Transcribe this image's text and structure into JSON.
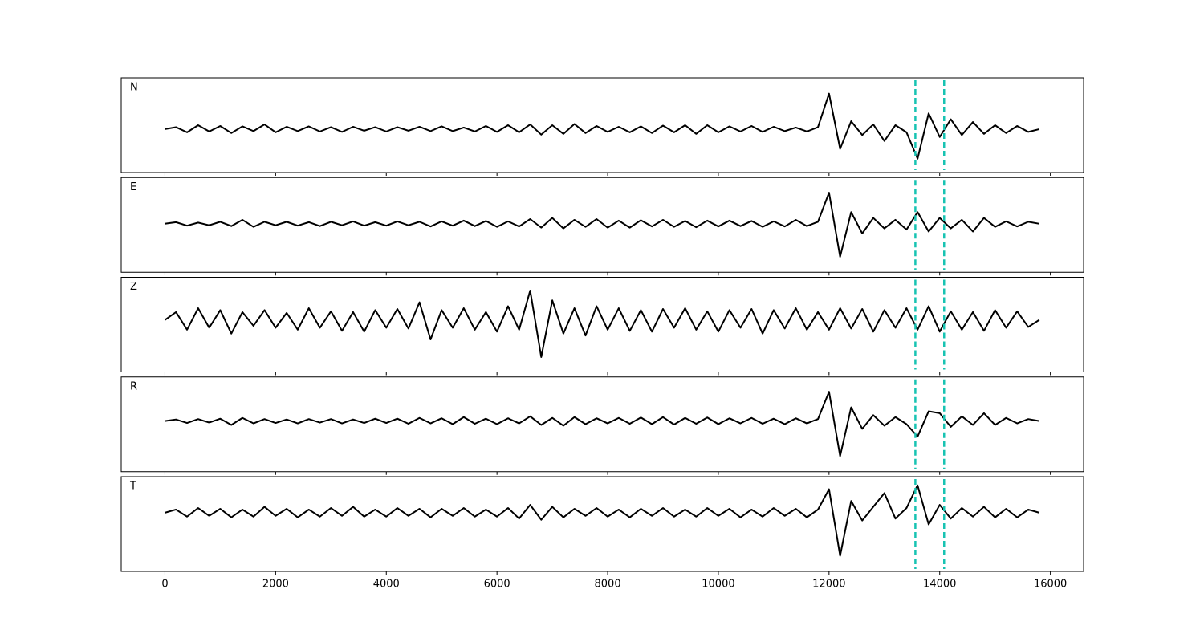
{
  "chart_data": [
    {
      "type": "line",
      "label": "N",
      "color": "#000000",
      "xlim": [
        -790,
        16600
      ],
      "ylim": [
        -1.1,
        1.3
      ],
      "xticks": [
        0,
        2000,
        4000,
        6000,
        8000,
        10000,
        12000,
        14000,
        16000
      ],
      "show_xtick_labels": false,
      "vlines": {
        "values": [
          13560,
          14080
        ],
        "color": "#17c3b2",
        "style": "dashed"
      },
      "x": [
        0,
        200,
        400,
        600,
        800,
        1000,
        1200,
        1400,
        1600,
        1800,
        2000,
        2200,
        2400,
        2600,
        2800,
        3000,
        3200,
        3400,
        3600,
        3800,
        4000,
        4200,
        4400,
        4600,
        4800,
        5000,
        5200,
        5400,
        5600,
        5800,
        6000,
        6200,
        6400,
        6600,
        6800,
        7000,
        7200,
        7400,
        7600,
        7800,
        8000,
        8200,
        8400,
        8600,
        8800,
        9000,
        9200,
        9400,
        9600,
        9800,
        10000,
        10200,
        10400,
        10600,
        10800,
        11000,
        11200,
        11400,
        11600,
        11800,
        12000,
        12200,
        12400,
        12600,
        12800,
        13000,
        13200,
        13400,
        13600,
        13800,
        14000,
        14200,
        14400,
        14600,
        14800,
        15000,
        15200,
        15400,
        15600,
        15800
      ],
      "values": [
        0,
        0.05,
        -0.08,
        0.1,
        -0.06,
        0.08,
        -0.1,
        0.07,
        -0.05,
        0.12,
        -0.08,
        0.06,
        -0.05,
        0.07,
        -0.06,
        0.05,
        -0.07,
        0.06,
        -0.04,
        0.05,
        -0.06,
        0.05,
        -0.04,
        0.06,
        -0.05,
        0.07,
        -0.05,
        0.04,
        -0.06,
        0.08,
        -0.07,
        0.1,
        -0.08,
        0.12,
        -0.14,
        0.1,
        -0.12,
        0.13,
        -0.1,
        0.08,
        -0.07,
        0.06,
        -0.08,
        0.07,
        -0.1,
        0.09,
        -0.08,
        0.1,
        -0.12,
        0.1,
        -0.08,
        0.07,
        -0.06,
        0.08,
        -0.07,
        0.06,
        -0.05,
        0.04,
        -0.06,
        0.05,
        0.9,
        -0.5,
        0.2,
        -0.15,
        0.12,
        -0.3,
        0.1,
        -0.08,
        -0.75,
        0.4,
        -0.2,
        0.25,
        -0.15,
        0.18,
        -0.12,
        0.1,
        -0.1,
        0.08,
        -0.07,
        0
      ]
    },
    {
      "type": "line",
      "label": "E",
      "color": "#000000",
      "xlim": [
        -790,
        16600
      ],
      "ylim": [
        -1.25,
        1.19
      ],
      "xticks": [
        0,
        2000,
        4000,
        6000,
        8000,
        10000,
        12000,
        14000,
        16000
      ],
      "show_xtick_labels": false,
      "vlines": {
        "values": [
          13560,
          14080
        ],
        "color": "#17c3b2",
        "style": "dashed"
      },
      "x": [
        0,
        200,
        400,
        600,
        800,
        1000,
        1200,
        1400,
        1600,
        1800,
        2000,
        2200,
        2400,
        2600,
        2800,
        3000,
        3200,
        3400,
        3600,
        3800,
        4000,
        4200,
        4400,
        4600,
        4800,
        5000,
        5200,
        5400,
        5600,
        5800,
        6000,
        6200,
        6400,
        6600,
        6800,
        7000,
        7200,
        7400,
        7600,
        7800,
        8000,
        8200,
        8400,
        8600,
        8800,
        9000,
        9200,
        9400,
        9600,
        9800,
        10000,
        10200,
        10400,
        10600,
        10800,
        11000,
        11200,
        11400,
        11600,
        11800,
        12000,
        12200,
        12400,
        12600,
        12800,
        13000,
        13200,
        13400,
        13600,
        13800,
        14000,
        14200,
        14400,
        14600,
        14800,
        15000,
        15200,
        15400,
        15600,
        15800
      ],
      "values": [
        0,
        0.04,
        -0.05,
        0.03,
        -0.04,
        0.05,
        -0.06,
        0.1,
        -0.08,
        0.05,
        -0.04,
        0.05,
        -0.05,
        0.04,
        -0.06,
        0.05,
        -0.04,
        0.06,
        -0.05,
        0.04,
        -0.05,
        0.06,
        -0.04,
        0.05,
        -0.07,
        0.06,
        -0.05,
        0.08,
        -0.06,
        0.07,
        -0.08,
        0.06,
        -0.07,
        0.12,
        -0.1,
        0.15,
        -0.12,
        0.1,
        -0.08,
        0.12,
        -0.1,
        0.08,
        -0.1,
        0.09,
        -0.07,
        0.1,
        -0.08,
        0.07,
        -0.09,
        0.08,
        -0.07,
        0.08,
        -0.06,
        0.07,
        -0.08,
        0.06,
        -0.07,
        0.1,
        -0.06,
        0.05,
        0.8,
        -0.85,
        0.3,
        -0.25,
        0.15,
        -0.12,
        0.1,
        -0.15,
        0.3,
        -0.2,
        0.15,
        -0.12,
        0.1,
        -0.2,
        0.15,
        -0.08,
        0.06,
        -0.07,
        0.05,
        0
      ]
    },
    {
      "type": "line",
      "label": "Z",
      "color": "#000000",
      "xlim": [
        -790,
        16600
      ],
      "ylim": [
        -1.33,
        1.09
      ],
      "xticks": [
        0,
        2000,
        4000,
        6000,
        8000,
        10000,
        12000,
        14000,
        16000
      ],
      "show_xtick_labels": false,
      "vlines": {
        "values": [
          13560,
          14080
        ],
        "color": "#17c3b2",
        "style": "dashed"
      },
      "x": [
        0,
        200,
        400,
        600,
        800,
        1000,
        1200,
        1400,
        1600,
        1800,
        2000,
        2200,
        2400,
        2600,
        2800,
        3000,
        3200,
        3400,
        3600,
        3800,
        4000,
        4200,
        4400,
        4600,
        4800,
        5000,
        5200,
        5400,
        5600,
        5800,
        6000,
        6200,
        6400,
        6600,
        6800,
        7000,
        7200,
        7400,
        7600,
        7800,
        8000,
        8200,
        8400,
        8600,
        8800,
        9000,
        9200,
        9400,
        9600,
        9800,
        10000,
        10200,
        10400,
        10600,
        10800,
        11000,
        11200,
        11400,
        11600,
        11800,
        12000,
        12200,
        12400,
        12600,
        12800,
        13000,
        13200,
        13400,
        13600,
        13800,
        14000,
        14200,
        14400,
        14600,
        14800,
        15000,
        15200,
        15400,
        15600,
        15800
      ],
      "values": [
        0,
        0.2,
        -0.25,
        0.3,
        -0.2,
        0.25,
        -0.35,
        0.2,
        -0.15,
        0.25,
        -0.2,
        0.18,
        -0.25,
        0.3,
        -0.2,
        0.22,
        -0.28,
        0.2,
        -0.3,
        0.25,
        -0.2,
        0.28,
        -0.22,
        0.45,
        -0.5,
        0.25,
        -0.2,
        0.3,
        -0.25,
        0.2,
        -0.3,
        0.35,
        -0.25,
        0.75,
        -0.95,
        0.5,
        -0.35,
        0.3,
        -0.4,
        0.35,
        -0.25,
        0.3,
        -0.28,
        0.25,
        -0.3,
        0.28,
        -0.2,
        0.3,
        -0.25,
        0.22,
        -0.3,
        0.25,
        -0.2,
        0.28,
        -0.35,
        0.25,
        -0.22,
        0.3,
        -0.25,
        0.2,
        -0.25,
        0.3,
        -0.22,
        0.28,
        -0.3,
        0.25,
        -0.2,
        0.3,
        -0.25,
        0.35,
        -0.3,
        0.22,
        -0.25,
        0.2,
        -0.28,
        0.25,
        -0.2,
        0.22,
        -0.18,
        0
      ]
    },
    {
      "type": "line",
      "label": "R",
      "color": "#000000",
      "xlim": [
        -790,
        16600
      ],
      "ylim": [
        -1.3,
        1.13
      ],
      "xticks": [
        0,
        2000,
        4000,
        6000,
        8000,
        10000,
        12000,
        14000,
        16000
      ],
      "show_xtick_labels": false,
      "vlines": {
        "values": [
          13560,
          14080
        ],
        "color": "#17c3b2",
        "style": "dashed"
      },
      "x": [
        0,
        200,
        400,
        600,
        800,
        1000,
        1200,
        1400,
        1600,
        1800,
        2000,
        2200,
        2400,
        2600,
        2800,
        3000,
        3200,
        3400,
        3600,
        3800,
        4000,
        4200,
        4400,
        4600,
        4800,
        5000,
        5200,
        5400,
        5600,
        5800,
        6000,
        6200,
        6400,
        6600,
        6800,
        7000,
        7200,
        7400,
        7600,
        7800,
        8000,
        8200,
        8400,
        8600,
        8800,
        9000,
        9200,
        9400,
        9600,
        9800,
        10000,
        10200,
        10400,
        10600,
        10800,
        11000,
        11200,
        11400,
        11600,
        11800,
        12000,
        12200,
        12400,
        12600,
        12800,
        13000,
        13200,
        13400,
        13600,
        13800,
        14000,
        14200,
        14400,
        14600,
        14800,
        15000,
        15200,
        15400,
        15600,
        15800
      ],
      "values": [
        0,
        0.04,
        -0.05,
        0.05,
        -0.04,
        0.06,
        -0.1,
        0.08,
        -0.06,
        0.05,
        -0.05,
        0.04,
        -0.06,
        0.05,
        -0.04,
        0.05,
        -0.06,
        0.04,
        -0.05,
        0.06,
        -0.05,
        0.06,
        -0.07,
        0.08,
        -0.06,
        0.07,
        -0.08,
        0.1,
        -0.07,
        0.06,
        -0.08,
        0.07,
        -0.06,
        0.12,
        -0.1,
        0.08,
        -0.12,
        0.1,
        -0.08,
        0.07,
        -0.06,
        0.08,
        -0.07,
        0.09,
        -0.08,
        0.1,
        -0.09,
        0.08,
        -0.07,
        0.09,
        -0.08,
        0.07,
        -0.06,
        0.08,
        -0.07,
        0.06,
        -0.08,
        0.07,
        -0.06,
        0.05,
        0.75,
        -0.9,
        0.35,
        -0.2,
        0.15,
        -0.12,
        0.1,
        -0.08,
        -0.4,
        0.25,
        0.2,
        -0.15,
        0.12,
        -0.1,
        0.2,
        -0.1,
        0.08,
        -0.06,
        0.05,
        0
      ]
    },
    {
      "type": "line",
      "label": "T",
      "color": "#000000",
      "xlim": [
        -790,
        16600
      ],
      "ylim": [
        -1.5,
        0.92
      ],
      "xticks": [
        0,
        2000,
        4000,
        6000,
        8000,
        10000,
        12000,
        14000,
        16000
      ],
      "show_xtick_labels": true,
      "vlines": {
        "values": [
          13560,
          14080
        ],
        "color": "#17c3b2",
        "style": "dashed"
      },
      "x": [
        0,
        200,
        400,
        600,
        800,
        1000,
        1200,
        1400,
        1600,
        1800,
        2000,
        2200,
        2400,
        2600,
        2800,
        3000,
        3200,
        3400,
        3600,
        3800,
        4000,
        4200,
        4400,
        4600,
        4800,
        5000,
        5200,
        5400,
        5600,
        5800,
        6000,
        6200,
        6400,
        6600,
        6800,
        7000,
        7200,
        7400,
        7600,
        7800,
        8000,
        8200,
        8400,
        8600,
        8800,
        9000,
        9200,
        9400,
        9600,
        9800,
        10000,
        10200,
        10400,
        10600,
        10800,
        11000,
        11200,
        11400,
        11600,
        11800,
        12000,
        12200,
        12400,
        12600,
        12800,
        13000,
        13200,
        13400,
        13600,
        13800,
        14000,
        14200,
        14400,
        14600,
        14800,
        15000,
        15200,
        15400,
        15600,
        15800
      ],
      "values": [
        0,
        0.08,
        -0.1,
        0.12,
        -0.08,
        0.1,
        -0.12,
        0.08,
        -0.1,
        0.15,
        -0.08,
        0.1,
        -0.12,
        0.08,
        -0.1,
        0.12,
        -0.08,
        0.15,
        -0.1,
        0.08,
        -0.1,
        0.12,
        -0.08,
        0.1,
        -0.12,
        0.1,
        -0.08,
        0.12,
        -0.1,
        0.08,
        -0.1,
        0.12,
        -0.15,
        0.2,
        -0.18,
        0.15,
        -0.12,
        0.1,
        -0.08,
        0.12,
        -0.1,
        0.08,
        -0.12,
        0.1,
        -0.08,
        0.12,
        -0.1,
        0.08,
        -0.1,
        0.12,
        -0.08,
        0.1,
        -0.12,
        0.08,
        -0.1,
        0.12,
        -0.08,
        0.1,
        -0.12,
        0.08,
        0.6,
        -1.1,
        0.3,
        -0.2,
        0.15,
        0.5,
        -0.15,
        0.12,
        0.7,
        -0.3,
        0.2,
        -0.15,
        0.12,
        -0.1,
        0.15,
        -0.12,
        0.1,
        -0.12,
        0.08,
        0
      ]
    }
  ]
}
